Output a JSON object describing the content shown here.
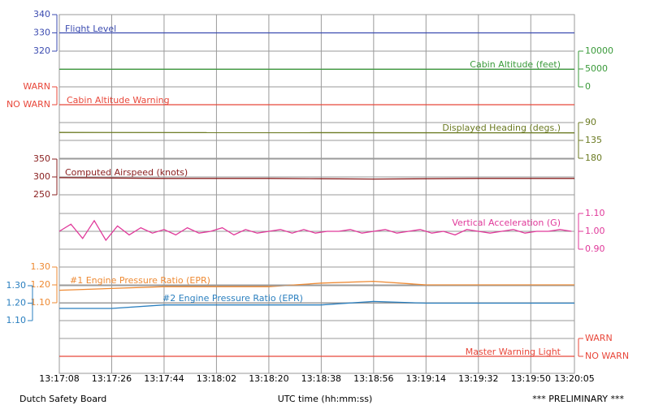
{
  "chart_data": {
    "type": "line",
    "xlabel": "UTC time (hh:mm:ss)",
    "xlim": [
      "13:17:08",
      "13:20:05"
    ],
    "xticks": [
      "13:17:08",
      "13:17:26",
      "13:17:44",
      "13:18:02",
      "13:18:20",
      "13:18:38",
      "13:18:56",
      "13:19:14",
      "13:19:32",
      "13:19:50",
      "13:20:05"
    ],
    "grid": true,
    "panels": [
      {
        "axis": "left",
        "ylim": [
          320,
          340
        ],
        "yticks": [
          340,
          330,
          320
        ],
        "series": [
          {
            "name": "Flight Level",
            "color": "#3b4bb0",
            "x": [
              "13:17:08",
              "13:18:38",
              "13:20:05"
            ],
            "values": [
              330,
              330,
              330
            ]
          }
        ]
      },
      {
        "axis": "right",
        "ylim": [
          0,
          10000
        ],
        "yticks": [
          10000,
          5000,
          0
        ],
        "series": [
          {
            "name": "Cabin Altitude (feet)",
            "color": "#3a9a3a",
            "x": [
              "13:17:08",
              "13:20:05"
            ],
            "values": [
              4900,
              4900
            ]
          }
        ]
      },
      {
        "axis": "left",
        "ylim": [
          0,
          1
        ],
        "yticks": [
          {
            "value": 1,
            "label": "WARN"
          },
          {
            "value": 0,
            "label": "NO WARN"
          }
        ],
        "series": [
          {
            "name": "Cabin Altitude Warning",
            "color": "#e8473a",
            "x": [
              "13:17:08",
              "13:20:05"
            ],
            "values": [
              0,
              0
            ]
          }
        ]
      },
      {
        "axis": "right",
        "ylim": [
          180,
          90
        ],
        "yticks": [
          90,
          135,
          180
        ],
        "series": [
          {
            "name": "Displayed Heading (degs.)",
            "color": "#6b7a22",
            "x": [
              "13:17:08",
              "13:20:05"
            ],
            "values": [
              115,
              116
            ]
          }
        ]
      },
      {
        "axis": "left",
        "ylim": [
          250,
          350
        ],
        "yticks": [
          350,
          300,
          250
        ],
        "series": [
          {
            "name": "Computed Airspeed (knots)",
            "color": "#8a2020",
            "x": [
              "13:17:08",
              "13:17:26",
              "13:17:44",
              "13:18:02",
              "13:18:20",
              "13:18:38",
              "13:18:56",
              "13:19:14",
              "13:19:32",
              "13:19:50",
              "13:20:05"
            ],
            "values": [
              298,
              297,
              296,
              296,
              296,
              295,
              294,
              295,
              296,
              296,
              296
            ]
          }
        ]
      },
      {
        "axis": "right",
        "ylim": [
          0.9,
          1.1
        ],
        "yticks": [
          {
            "value": 1.1,
            "label": "1.10"
          },
          {
            "value": 1,
            "label": "1.00"
          },
          {
            "value": 0.9,
            "label": "0.90"
          }
        ],
        "series": [
          {
            "name": "Vertical Acceleration (G)",
            "color": "#e0399a",
            "x": [
              "13:17:08",
              "13:17:12",
              "13:17:16",
              "13:17:20",
              "13:17:24",
              "13:17:28",
              "13:17:32",
              "13:17:36",
              "13:17:40",
              "13:17:44",
              "13:17:48",
              "13:17:52",
              "13:17:56",
              "13:18:00",
              "13:18:04",
              "13:18:08",
              "13:18:12",
              "13:18:16",
              "13:18:20",
              "13:18:24",
              "13:18:28",
              "13:18:32",
              "13:18:36",
              "13:18:40",
              "13:18:44",
              "13:18:48",
              "13:18:52",
              "13:18:56",
              "13:19:00",
              "13:19:04",
              "13:19:08",
              "13:19:12",
              "13:19:16",
              "13:19:20",
              "13:19:24",
              "13:19:28",
              "13:19:32",
              "13:19:36",
              "13:19:40",
              "13:19:44",
              "13:19:48",
              "13:19:52",
              "13:19:56",
              "13:20:00",
              "13:20:04"
            ],
            "values": [
              1.0,
              1.04,
              0.96,
              1.06,
              0.95,
              1.03,
              0.98,
              1.02,
              0.99,
              1.01,
              0.98,
              1.02,
              0.99,
              1.0,
              1.02,
              0.98,
              1.01,
              0.99,
              1.0,
              1.01,
              0.99,
              1.01,
              0.99,
              1.0,
              1.0,
              1.01,
              0.99,
              1.0,
              1.01,
              0.99,
              1.0,
              1.01,
              0.99,
              1.0,
              0.98,
              1.01,
              1.0,
              0.99,
              1.0,
              1.01,
              0.99,
              1.0,
              1.0,
              1.01,
              1.0
            ]
          }
        ]
      },
      {
        "axis": "left",
        "ylim": [
          1.1,
          1.3
        ],
        "yticks": [
          {
            "value": 1.3,
            "label": "1.30"
          },
          {
            "value": 1.2,
            "label": "1.20"
          },
          {
            "value": 1.1,
            "label": "1.10"
          }
        ],
        "series": [
          {
            "name": "#1 Engine Pressure Ratio (EPR)",
            "color": "#ee8a33",
            "x": [
              "13:17:08",
              "13:17:26",
              "13:17:44",
              "13:18:02",
              "13:18:20",
              "13:18:38",
              "13:18:56",
              "13:19:14",
              "13:19:32",
              "13:19:50",
              "13:20:05"
            ],
            "values": [
              1.17,
              1.18,
              1.19,
              1.19,
              1.19,
              1.21,
              1.22,
              1.2,
              1.2,
              1.2,
              1.2
            ]
          }
        ]
      },
      {
        "axis": "left",
        "ylim": [
          1.1,
          1.3
        ],
        "yticks": [
          {
            "value": 1.3,
            "label": "1.30"
          },
          {
            "value": 1.2,
            "label": "1.20"
          },
          {
            "value": 1.1,
            "label": "1.10"
          }
        ],
        "series": [
          {
            "name": "#2 Engine Pressure Ratio (EPR)",
            "color": "#2a7fbf",
            "x": [
              "13:17:08",
              "13:17:26",
              "13:17:44",
              "13:18:02",
              "13:18:20",
              "13:18:38",
              "13:18:56",
              "13:19:14",
              "13:19:32",
              "13:19:50",
              "13:20:05"
            ],
            "values": [
              1.17,
              1.17,
              1.19,
              1.19,
              1.19,
              1.19,
              1.21,
              1.2,
              1.2,
              1.2,
              1.2
            ]
          }
        ]
      },
      {
        "axis": "right",
        "ylim": [
          0,
          1
        ],
        "yticks": [
          {
            "value": 1,
            "label": "WARN"
          },
          {
            "value": 0,
            "label": "NO WARN"
          }
        ],
        "series": [
          {
            "name": "Master Warning Light",
            "color": "#e8473a",
            "x": [
              "13:17:08",
              "13:20:05"
            ],
            "values": [
              0,
              0
            ]
          }
        ]
      }
    ]
  },
  "footer": {
    "left": "Dutch Safety Board",
    "right": "*** PRELIMINARY ***"
  }
}
